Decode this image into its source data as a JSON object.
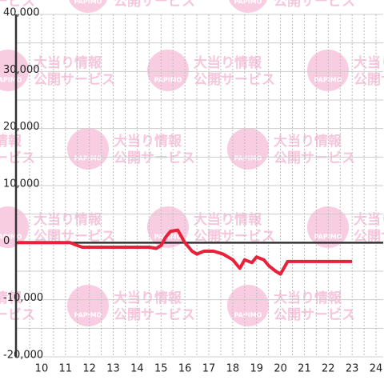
{
  "chart_data": {
    "type": "line",
    "watermark": {
      "brand": "PAPIMO",
      "line1": "大当り情報",
      "line2": "公開サービス"
    },
    "x": [
      9,
      11.2,
      11.5,
      11.7,
      12,
      14.5,
      14.8,
      15.0,
      15.2,
      15.4,
      15.7,
      16.0,
      16.3,
      16.5,
      16.8,
      17.2,
      17.6,
      18.0,
      18.3,
      18.5,
      18.8,
      19.0,
      19.3,
      19.5,
      19.8,
      20.0,
      20.3,
      23.0
    ],
    "series": [
      {
        "color": "#e8203a",
        "values": [
          0,
          0,
          -500,
          -800,
          -800,
          -800,
          -1000,
          -500,
          1000,
          2000,
          2200,
          0,
          -1500,
          -2000,
          -1500,
          -1500,
          -2000,
          -3000,
          -4500,
          -3000,
          -3500,
          -2500,
          -3000,
          -4000,
          -5000,
          -5500,
          -3300,
          -3300
        ]
      }
    ],
    "xlim": [
      8.93,
      24.3
    ],
    "xticks": [
      10,
      11,
      12,
      13,
      14,
      15,
      16,
      17,
      18,
      19,
      20,
      21,
      22,
      23,
      24
    ],
    "x_minor_ticks": [
      9.5,
      10.5,
      11.5,
      12.5,
      13.5,
      14.5,
      15.5,
      16.5,
      17.5,
      18.5,
      19.5,
      20.5,
      21.5,
      22.5,
      23.5
    ],
    "ylim": [
      -20000,
      40000
    ],
    "yticks": [
      {
        "value": -20000,
        "label": "-20,000"
      },
      {
        "value": -10000,
        "label": "-10,000"
      },
      0,
      {
        "value": 10000,
        "label": "10,000"
      },
      {
        "value": 20000,
        "label": "20,000"
      },
      {
        "value": 30000,
        "label": "30,000"
      },
      {
        "value": 40000,
        "label": "40,000"
      }
    ],
    "y_minor_ticks": [
      -15000,
      -5000,
      5000,
      15000,
      25000,
      35000
    ],
    "grid": true
  }
}
